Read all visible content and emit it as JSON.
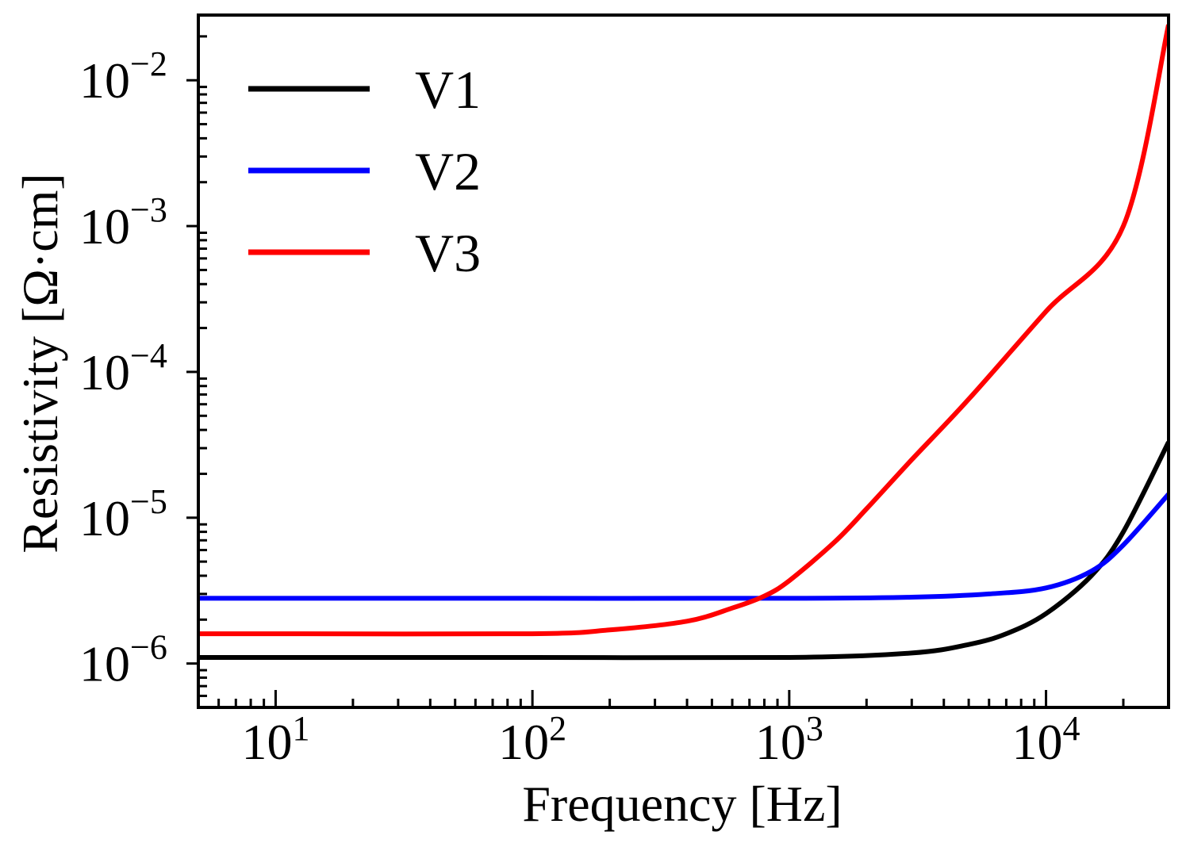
{
  "chart_data": {
    "type": "line",
    "xscale": "log",
    "yscale": "log",
    "xlabel": "Frequency [Hz]",
    "ylabel": "Resistivity [Ω·cm]",
    "xlim": [
      5,
      30000
    ],
    "ylim": [
      5e-07,
      0.028
    ],
    "x_ticks": [
      {
        "value": 10,
        "base": "10",
        "exp": "1"
      },
      {
        "value": 100,
        "base": "10",
        "exp": "2"
      },
      {
        "value": 1000,
        "base": "10",
        "exp": "3"
      },
      {
        "value": 10000,
        "base": "10",
        "exp": "4"
      }
    ],
    "y_ticks": [
      {
        "value": 1e-06,
        "base": "10",
        "exp": "−6"
      },
      {
        "value": 1e-05,
        "base": "10",
        "exp": "−5"
      },
      {
        "value": 0.0001,
        "base": "10",
        "exp": "−4"
      },
      {
        "value": 0.001,
        "base": "10",
        "exp": "−3"
      },
      {
        "value": 0.01,
        "base": "10",
        "exp": "−2"
      }
    ],
    "legend_position": "top-left",
    "series": [
      {
        "name": "V1",
        "color": "#000000",
        "x": [
          5,
          10,
          100,
          1000,
          3000,
          5000,
          7000,
          10000,
          15000,
          20000,
          30000
        ],
        "y": [
          1.1e-06,
          1.1e-06,
          1.1e-06,
          1.1e-06,
          1.18e-06,
          1.35e-06,
          1.6e-06,
          2.2e-06,
          4e-06,
          8e-06,
          3.3e-05
        ]
      },
      {
        "name": "V2",
        "color": "#0000ff",
        "x": [
          5,
          10,
          100,
          1000,
          3000,
          6000,
          10000,
          15000,
          20000,
          30000
        ],
        "y": [
          2.8e-06,
          2.8e-06,
          2.8e-06,
          2.8e-06,
          2.85e-06,
          3e-06,
          3.3e-06,
          4.3e-06,
          6.5e-06,
          1.45e-05
        ]
      },
      {
        "name": "V3",
        "color": "#ff0000",
        "x": [
          5,
          10,
          100,
          200,
          400,
          600,
          800,
          1000,
          1500,
          2000,
          3000,
          5000,
          10000,
          20000,
          30000
        ],
        "y": [
          1.6e-06,
          1.6e-06,
          1.6e-06,
          1.7e-06,
          1.95e-06,
          2.4e-06,
          2.9e-06,
          3.7e-06,
          6.8e-06,
          1.15e-05,
          2.5e-05,
          6.5e-05,
          0.00026,
          0.001,
          0.024
        ]
      }
    ]
  }
}
